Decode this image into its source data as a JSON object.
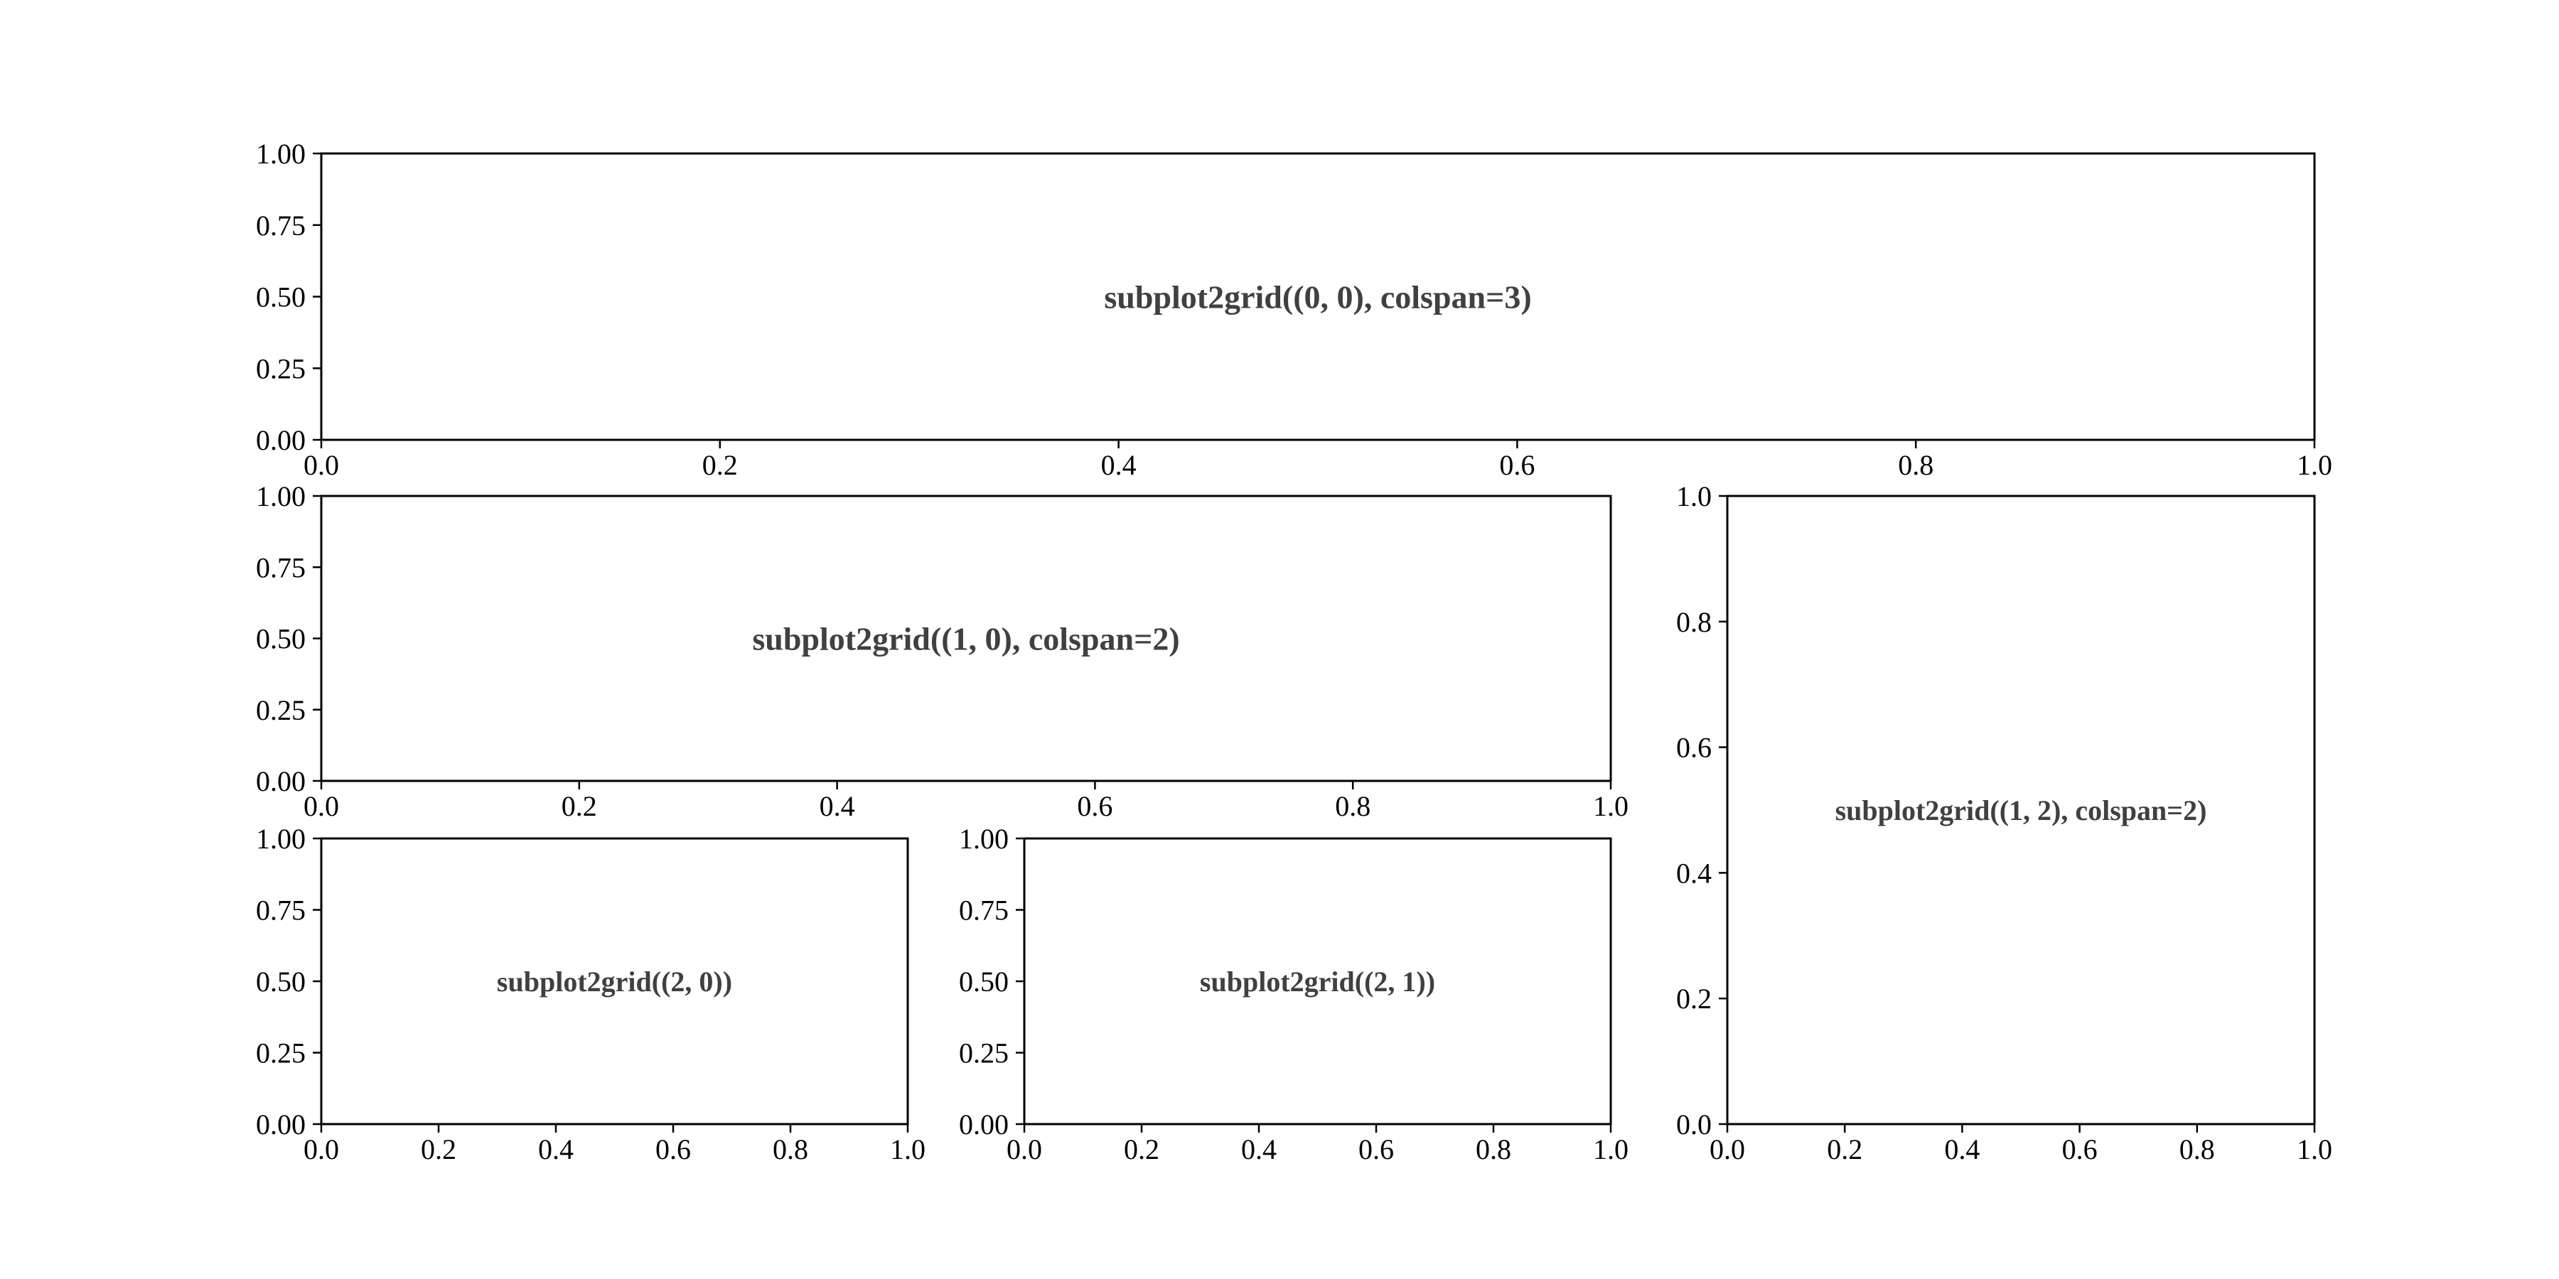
{
  "chart_data": [
    {
      "type": "line",
      "title": "",
      "xlabel": "",
      "ylabel": "",
      "xlim": [
        0,
        1
      ],
      "ylim": [
        0,
        1
      ],
      "xticks": [
        "0.0",
        "0.2",
        "0.4",
        "0.6",
        "0.8",
        "1.0"
      ],
      "yticks": [
        "0.00",
        "0.25",
        "0.50",
        "0.75",
        "1.00"
      ],
      "grid": false,
      "series": [],
      "annotations": [
        {
          "text": "subplot2grid((0, 0), colspan=3)",
          "x": 0.5,
          "y": 0.5
        }
      ]
    },
    {
      "type": "line",
      "title": "",
      "xlabel": "",
      "ylabel": "",
      "xlim": [
        0,
        1
      ],
      "ylim": [
        0,
        1
      ],
      "xticks": [
        "0.0",
        "0.2",
        "0.4",
        "0.6",
        "0.8",
        "1.0"
      ],
      "yticks": [
        "0.00",
        "0.25",
        "0.50",
        "0.75",
        "1.00"
      ],
      "grid": false,
      "series": [],
      "annotations": [
        {
          "text": "subplot2grid((1, 0), colspan=2)",
          "x": 0.5,
          "y": 0.5
        }
      ]
    },
    {
      "type": "line",
      "title": "",
      "xlabel": "",
      "ylabel": "",
      "xlim": [
        0,
        1
      ],
      "ylim": [
        0,
        1
      ],
      "xticks": [
        "0.0",
        "0.2",
        "0.4",
        "0.6",
        "0.8",
        "1.0"
      ],
      "yticks": [
        "0.0",
        "0.2",
        "0.4",
        "0.6",
        "0.8",
        "1.0"
      ],
      "grid": false,
      "series": [],
      "annotations": [
        {
          "text": "subplot2grid((1, 2), colspan=2)",
          "x": 0.5,
          "y": 0.5
        }
      ]
    },
    {
      "type": "line",
      "title": "",
      "xlabel": "",
      "ylabel": "",
      "xlim": [
        0,
        1
      ],
      "ylim": [
        0,
        1
      ],
      "xticks": [
        "0.0",
        "0.2",
        "0.4",
        "0.6",
        "0.8",
        "1.0"
      ],
      "yticks": [
        "0.00",
        "0.25",
        "0.50",
        "0.75",
        "1.00"
      ],
      "grid": false,
      "series": [],
      "annotations": [
        {
          "text": "subplot2grid((2, 0))",
          "x": 0.5,
          "y": 0.5
        }
      ]
    },
    {
      "type": "line",
      "title": "",
      "xlabel": "",
      "ylabel": "",
      "xlim": [
        0,
        1
      ],
      "ylim": [
        0,
        1
      ],
      "xticks": [
        "0.0",
        "0.2",
        "0.4",
        "0.6",
        "0.8",
        "1.0"
      ],
      "yticks": [
        "0.00",
        "0.25",
        "0.50",
        "0.75",
        "1.00"
      ],
      "grid": false,
      "series": [],
      "annotations": [
        {
          "text": "subplot2grid((2, 1))",
          "x": 0.5,
          "y": 0.5
        }
      ]
    }
  ]
}
